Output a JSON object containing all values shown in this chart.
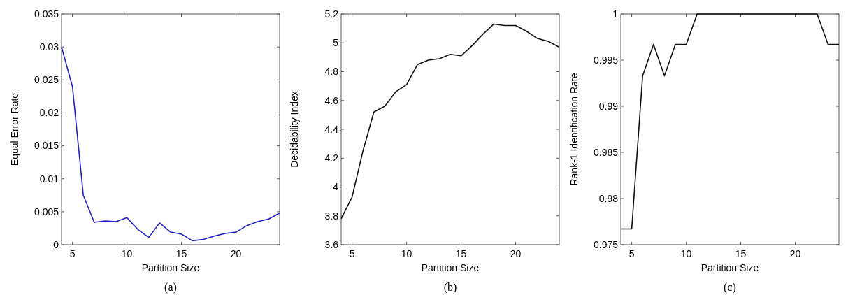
{
  "chart_data": [
    {
      "type": "line",
      "xlabel": "Partition Size",
      "ylabel": "Equal Error Rate",
      "annotations": [
        "(a)"
      ],
      "x": [
        4,
        5,
        6,
        7,
        8,
        9,
        10,
        11,
        12,
        13,
        14,
        15,
        16,
        17,
        18,
        19,
        20,
        21,
        22,
        23,
        24
      ],
      "series": [
        {
          "color": "#2020c8",
          "values": [
            0.03,
            0.024,
            0.0075,
            0.0034,
            0.0036,
            0.0035,
            0.0041,
            0.0023,
            0.0011,
            0.0033,
            0.0019,
            0.0016,
            0.0006,
            0.0008,
            0.0013,
            0.0017,
            0.0019,
            0.0029,
            0.0035,
            0.0039,
            0.0048
          ]
        }
      ],
      "xlim": [
        4,
        24
      ],
      "xticks": [
        5,
        10,
        15,
        20
      ],
      "ylim": [
        0,
        0.035
      ],
      "yticks": [
        0,
        0.005,
        0.01,
        0.015,
        0.02,
        0.025,
        0.03,
        0.035
      ],
      "grid": false
    },
    {
      "type": "line",
      "xlabel": "Partition Size",
      "ylabel": "Decidability Index",
      "annotations": [
        "(b)"
      ],
      "x": [
        4,
        5,
        6,
        7,
        8,
        9,
        10,
        11,
        12,
        13,
        14,
        15,
        16,
        17,
        18,
        19,
        20,
        21,
        22,
        23,
        24
      ],
      "series": [
        {
          "color": "#111111",
          "values": [
            3.78,
            3.93,
            4.25,
            4.52,
            4.56,
            4.66,
            4.71,
            4.85,
            4.88,
            4.89,
            4.92,
            4.91,
            4.98,
            5.06,
            5.13,
            5.12,
            5.12,
            5.08,
            5.03,
            5.01,
            4.97
          ]
        }
      ],
      "xlim": [
        4,
        24
      ],
      "xticks": [
        5,
        10,
        15,
        20
      ],
      "ylim": [
        3.6,
        5.2
      ],
      "yticks": [
        3.6,
        3.8,
        4,
        4.2,
        4.4,
        4.6,
        4.8,
        5,
        5.2
      ],
      "grid": false
    },
    {
      "type": "line",
      "xlabel": "Partition Size",
      "ylabel": "Rank-1 Identification Rate",
      "annotations": [
        "(c)"
      ],
      "x": [
        4,
        5,
        6,
        7,
        8,
        9,
        10,
        11,
        12,
        13,
        14,
        15,
        16,
        17,
        18,
        19,
        20,
        21,
        22,
        23,
        24
      ],
      "series": [
        {
          "color": "#111111",
          "values": [
            0.9767,
            0.9767,
            0.9933,
            0.9967,
            0.9933,
            0.9967,
            0.9967,
            1,
            1,
            1,
            1,
            1,
            1,
            1,
            1,
            1,
            1,
            1,
            1,
            0.9967,
            0.9967
          ]
        }
      ],
      "xlim": [
        4,
        24
      ],
      "xticks": [
        5,
        10,
        15,
        20
      ],
      "ylim": [
        0.975,
        1
      ],
      "yticks": [
        0.975,
        0.98,
        0.985,
        0.99,
        0.995,
        1
      ],
      "grid": false
    }
  ]
}
